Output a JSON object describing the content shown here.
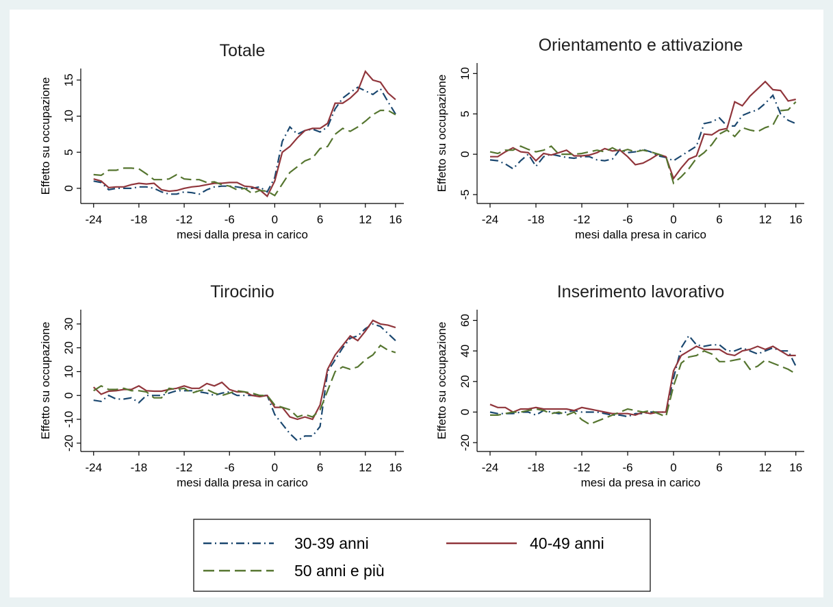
{
  "chart_data": [
    {
      "type": "line",
      "title": "Totale",
      "x_label": "mesi dalla presa in carico",
      "y_label": "Effetto su occupazione",
      "x": [
        -24,
        -23,
        -22,
        -21,
        -20,
        -19,
        -18,
        -17,
        -16,
        -15,
        -14,
        -13,
        -12,
        -11,
        -10,
        -9,
        -8,
        -7,
        -6,
        -5,
        -4,
        -3,
        -2,
        -1,
        0,
        1,
        2,
        3,
        4,
        5,
        6,
        7,
        8,
        9,
        10,
        11,
        12,
        13,
        14,
        15,
        16
      ],
      "xlim": [
        -25.7,
        17.1
      ],
      "xticks": [
        -24,
        -18,
        -12,
        -6,
        0,
        6,
        12,
        16
      ],
      "ylim": [
        -2.1,
        16.6
      ],
      "yticks": [
        0,
        5,
        10,
        15
      ],
      "series": [
        {
          "name": "30-39 anni",
          "color": "#1a476f",
          "dash": "dash-dot",
          "values": [
            1,
            0.8,
            -0.2,
            0,
            0,
            0,
            0.2,
            0.2,
            0,
            -0.5,
            -0.8,
            -0.8,
            -0.5,
            -0.6,
            -0.8,
            -0.2,
            0.2,
            0.3,
            0.3,
            0.2,
            0,
            0,
            0.2,
            -0.5,
            1.5,
            6.5,
            8.5,
            7.5,
            8,
            8.2,
            7.8,
            8.5,
            11,
            12.5,
            13.3,
            14,
            13.5,
            13,
            13.8,
            12,
            10.3
          ]
        },
        {
          "name": "40-49 anni",
          "color": "#90353b",
          "dash": "solid",
          "values": [
            1.3,
            1,
            0.1,
            0.2,
            0.2,
            0.5,
            0.7,
            0.6,
            0.7,
            -0.2,
            -0.4,
            -0.3,
            0,
            0.2,
            0.3,
            0.5,
            0.7,
            0.7,
            0.8,
            0.8,
            0.3,
            0.2,
            -0.2,
            -1.1,
            1,
            5,
            5.8,
            7,
            8,
            8.3,
            8.3,
            9,
            11.8,
            11.8,
            12.5,
            13.5,
            16.2,
            15,
            14.7,
            13.2,
            12.3
          ]
        },
        {
          "name": "50 anni e più",
          "color": "#55752f",
          "dash": "long-dash",
          "values": [
            1.9,
            1.8,
            2.5,
            2.5,
            2.8,
            2.8,
            2.7,
            2,
            1.2,
            1.2,
            1.3,
            1.9,
            1.3,
            1.2,
            1.2,
            0.8,
            0.9,
            0.5,
            0.3,
            -0.2,
            0,
            -0.7,
            -0.3,
            -0.4,
            -1,
            0.6,
            2.2,
            3,
            3.8,
            4.2,
            5.5,
            5.8,
            7.5,
            8.3,
            7.9,
            8.5,
            9.3,
            10.2,
            10.8,
            10.8,
            10.2
          ]
        }
      ]
    },
    {
      "type": "line",
      "title": "Orientamento e attivazione",
      "x_label": "mesi dalla presa in carico",
      "y_label": "Effetto su occupazione",
      "x": [
        -24,
        -23,
        -22,
        -21,
        -20,
        -19,
        -18,
        -17,
        -16,
        -15,
        -14,
        -13,
        -12,
        -11,
        -10,
        -9,
        -8,
        -7,
        -6,
        -5,
        -4,
        -3,
        -2,
        -1,
        0,
        1,
        2,
        3,
        4,
        5,
        6,
        7,
        8,
        9,
        10,
        11,
        12,
        13,
        14,
        15,
        16
      ],
      "xlim": [
        -25.7,
        17.1
      ],
      "xticks": [
        -24,
        -18,
        -12,
        -6,
        0,
        6,
        12,
        16
      ],
      "ylim": [
        -6.1,
        11.3
      ],
      "yticks": [
        -5,
        0,
        5,
        10
      ],
      "series": [
        {
          "name": "30-39 anni",
          "color": "#1a476f",
          "dash": "dash-dot",
          "values": [
            -0.7,
            -0.8,
            -1.2,
            -1.8,
            -0.8,
            0,
            -1.5,
            -0.3,
            0,
            -0.2,
            -0.4,
            -0.5,
            -0.3,
            -0.3,
            -0.7,
            -0.8,
            -0.6,
            0.6,
            0.2,
            0.3,
            0.6,
            0.3,
            -0.2,
            -0.4,
            -0.8,
            -0.2,
            0.4,
            1,
            3.8,
            4,
            4.5,
            3.5,
            3.5,
            4.8,
            5.2,
            5.5,
            6.3,
            7.3,
            5,
            4.2,
            3.8
          ]
        },
        {
          "name": "40-49 anni",
          "color": "#90353b",
          "dash": "solid",
          "values": [
            -0.3,
            -0.3,
            0.3,
            0.8,
            0.3,
            0.2,
            -0.8,
            0.1,
            -0.1,
            0.2,
            0.5,
            -0.2,
            -0.2,
            -0.1,
            0.2,
            0.7,
            0.4,
            0.5,
            -0.3,
            -1.3,
            -1.1,
            -0.6,
            0,
            -0.3,
            -3,
            -1.7,
            -0.6,
            -0.2,
            2.5,
            2.4,
            3,
            3.2,
            6.5,
            6,
            7.2,
            8.1,
            9,
            8,
            7.9,
            6.6,
            6.8
          ]
        },
        {
          "name": "50 anni e più",
          "color": "#55752f",
          "dash": "long-dash",
          "values": [
            0.3,
            0.1,
            0.5,
            0.5,
            1,
            0.6,
            0.3,
            0.5,
            1,
            0,
            0,
            0,
            0.1,
            0.3,
            0.5,
            0.3,
            0.8,
            0.3,
            0.6,
            0.3,
            0.5,
            0.3,
            0,
            -0.3,
            -3.6,
            -2.8,
            -1.8,
            -0.5,
            0.2,
            1.2,
            2.5,
            3,
            2.2,
            3.3,
            3,
            2.8,
            3.3,
            3.6,
            5.4,
            5.5,
            6.5
          ]
        }
      ]
    },
    {
      "type": "line",
      "title": "Tirocinio",
      "x_label": "mesi dalla presa in carico",
      "y_label": "Effetto su occupazione",
      "x": [
        -24,
        -23,
        -22,
        -21,
        -20,
        -19,
        -18,
        -17,
        -16,
        -15,
        -14,
        -13,
        -12,
        -11,
        -10,
        -9,
        -8,
        -7,
        -6,
        -5,
        -4,
        -3,
        -2,
        -1,
        0,
        1,
        2,
        3,
        4,
        5,
        6,
        7,
        8,
        9,
        10,
        11,
        12,
        13,
        14,
        15,
        16
      ],
      "xlim": [
        -25.7,
        17.1
      ],
      "xticks": [
        -24,
        -18,
        -12,
        -6,
        0,
        6,
        12,
        16
      ],
      "ylim": [
        -23.5,
        36
      ],
      "yticks": [
        -20,
        -10,
        0,
        10,
        20,
        30
      ],
      "series": [
        {
          "name": "30-39 anni",
          "color": "#1a476f",
          "dash": "dash-dot",
          "values": [
            -2,
            -2.5,
            0,
            -1.5,
            -1.5,
            -1,
            -3,
            0,
            0,
            0,
            1,
            2,
            2,
            2,
            1.5,
            1,
            0,
            1,
            1.5,
            0,
            0,
            0,
            0,
            0,
            -8,
            -12,
            -16,
            -19,
            -17,
            -17,
            -13,
            10,
            15,
            20,
            24,
            25,
            28,
            30,
            29,
            26,
            23
          ]
        },
        {
          "name": "40-49 anni",
          "color": "#90353b",
          "dash": "solid",
          "values": [
            3.5,
            0.5,
            1.8,
            2,
            2.5,
            2.5,
            4,
            2,
            1.8,
            1.8,
            2.5,
            3,
            4,
            3,
            3,
            5,
            4,
            5.5,
            2.5,
            1.5,
            1.5,
            0,
            -0.5,
            0,
            -5,
            -5,
            -9,
            -10,
            -9,
            -10,
            -4,
            11,
            17,
            21,
            25,
            23,
            27,
            31.5,
            30,
            29.5,
            28.5
          ]
        },
        {
          "name": "50 anni e più",
          "color": "#55752f",
          "dash": "long-dash",
          "values": [
            2,
            4,
            2.5,
            2.5,
            3,
            2,
            2,
            1.5,
            -1,
            -1,
            3,
            2.5,
            3,
            1,
            2,
            2.5,
            1,
            0,
            1,
            2,
            1.5,
            1,
            0,
            0,
            -4,
            -5,
            -6,
            -9,
            -8,
            -9,
            -6,
            2,
            10,
            12,
            11,
            12,
            15,
            17,
            21,
            19,
            18
          ]
        }
      ]
    },
    {
      "type": "line",
      "title": "Inserimento lavorativo",
      "x_label": "mesi da presa in carico",
      "y_label": "Effetto su occupazione",
      "x": [
        -24,
        -23,
        -22,
        -21,
        -20,
        -19,
        -18,
        -17,
        -16,
        -15,
        -14,
        -13,
        -12,
        -11,
        -10,
        -9,
        -8,
        -7,
        -6,
        -5,
        -4,
        -3,
        -2,
        -1,
        0,
        1,
        2,
        3,
        4,
        5,
        6,
        7,
        8,
        9,
        10,
        11,
        12,
        13,
        14,
        15,
        16
      ],
      "xlim": [
        -25.7,
        17.1
      ],
      "xticks": [
        -24,
        -18,
        -12,
        -6,
        0,
        6,
        12,
        16
      ],
      "ylim": [
        -25.8,
        67
      ],
      "yticks": [
        -20,
        0,
        20,
        40,
        60
      ],
      "series": [
        {
          "name": "30-39 anni",
          "color": "#1a476f",
          "dash": "dash-dot",
          "values": [
            0,
            -1,
            -1,
            -1,
            0,
            0,
            -2,
            1,
            0,
            -1,
            0,
            1,
            0,
            0,
            0,
            -1,
            -2,
            -2,
            -3,
            -1,
            -1,
            0,
            0,
            0,
            22,
            42,
            50,
            44,
            43,
            44,
            44,
            40,
            40,
            42,
            40,
            38,
            40,
            42,
            40,
            40,
            30
          ]
        },
        {
          "name": "40-49 anni",
          "color": "#90353b",
          "dash": "solid",
          "values": [
            5,
            3,
            3,
            0,
            2,
            2,
            3,
            2,
            2,
            2,
            2,
            1,
            3,
            2,
            1,
            0,
            -1,
            -1,
            -1,
            -2,
            0,
            -1,
            0,
            0,
            27,
            37,
            40,
            43,
            41,
            41,
            41,
            38,
            37,
            40,
            41,
            43,
            41,
            43,
            40,
            37,
            37
          ]
        },
        {
          "name": "50 anni e più",
          "color": "#55752f",
          "dash": "long-dash",
          "values": [
            -2,
            -2,
            -1,
            0,
            0,
            1,
            2,
            1,
            -1,
            0,
            -2,
            0,
            -5,
            -8,
            -6,
            -4,
            -2,
            0,
            2,
            1,
            0,
            1,
            -1,
            -3,
            17,
            32,
            36,
            37,
            40,
            38,
            33,
            33,
            34,
            35,
            28,
            30,
            34,
            32,
            30,
            28,
            25
          ]
        }
      ]
    }
  ]
}
